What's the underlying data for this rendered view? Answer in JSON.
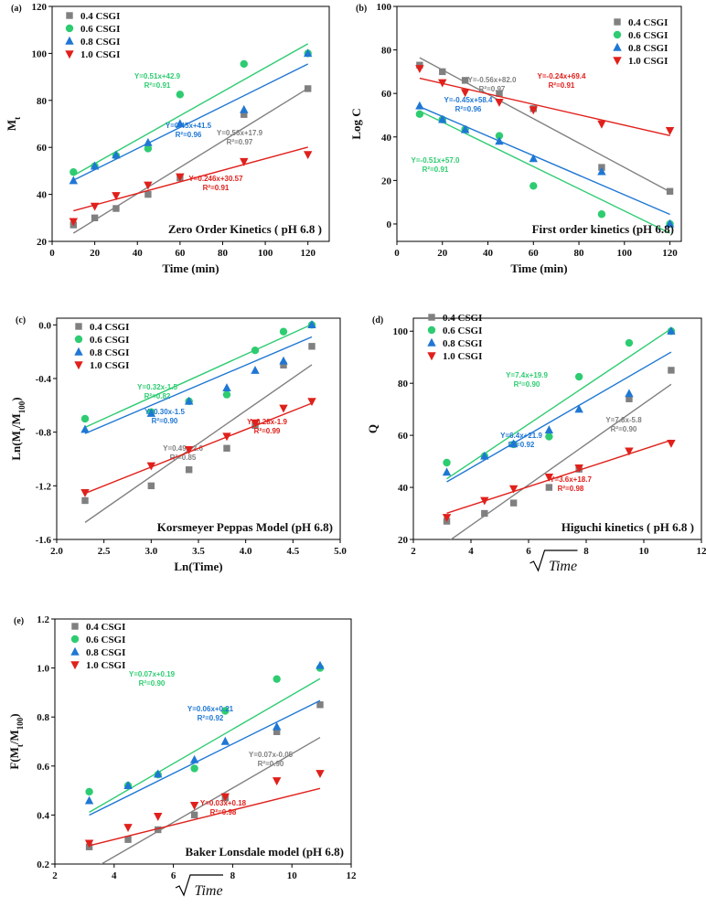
{
  "colors": {
    "0.4 CSGI": "#808080",
    "0.6 CSGI": "#2ecc71",
    "0.8 CSGI": "#1f77d4",
    "1.0 CSGI": "#e0201b",
    "axis": "#000000"
  },
  "chart_data": [
    {
      "id": "a",
      "panel_label": "(a)",
      "type": "scatter",
      "title": "Zero Order Kinetics ( pH 6.8 )",
      "xlabel": "Time (min)",
      "ylabel": "M",
      "ylabel_sub": "t",
      "xlim": [
        0,
        130
      ],
      "ylim": [
        20,
        120
      ],
      "xticks": [
        0,
        20,
        40,
        60,
        80,
        100,
        120
      ],
      "yticks": [
        20,
        40,
        60,
        80,
        100,
        120
      ],
      "x": [
        10,
        20,
        30,
        45,
        60,
        90,
        120
      ],
      "series": [
        {
          "name": "0.4 CSGI",
          "marker": "square",
          "values": [
            27,
            30,
            34,
            40,
            47,
            74,
            85
          ],
          "fit": {
            "slope": 0.56,
            "intercept": 17.9
          },
          "eq": "Y=0.56x+17.9",
          "r2": "R²=0.97"
        },
        {
          "name": "0.6 CSGI",
          "marker": "circle",
          "values": [
            49.5,
            52,
            56.5,
            59.5,
            82.5,
            95.5,
            100
          ],
          "fit": {
            "slope": 0.51,
            "intercept": 42.9
          },
          "eq": "Y=0.51x+42.9",
          "r2": "R²=0.91"
        },
        {
          "name": "0.8 CSGI",
          "marker": "triangle-up",
          "values": [
            45.8,
            52,
            56.7,
            62,
            70,
            76,
            100
          ],
          "fit": {
            "slope": 0.45,
            "intercept": 41.5
          },
          "eq": "Y=0.45x+41.5",
          "r2": "R²=0.96"
        },
        {
          "name": "1.0 CSGI",
          "marker": "triangle-down",
          "values": [
            28.5,
            35,
            39.5,
            44,
            47.5,
            54,
            57
          ],
          "fit": {
            "slope": 0.246,
            "intercept": 30.57
          },
          "eq": "Y=0.246x+30.57",
          "r2": "R²=0.91"
        }
      ]
    },
    {
      "id": "b",
      "panel_label": "(b)",
      "type": "scatter",
      "title": "First order kinetics (pH 6.8)",
      "xlabel": "Time (min)",
      "ylabel": "Log C",
      "ylabel_sub": "",
      "xlim": [
        0,
        125
      ],
      "ylim": [
        -8,
        100
      ],
      "xticks": [
        0,
        20,
        40,
        60,
        80,
        100,
        120
      ],
      "yticks": [
        0,
        20,
        40,
        60,
        80,
        100
      ],
      "x": [
        10,
        20,
        30,
        45,
        60,
        90,
        120
      ],
      "series": [
        {
          "name": "0.4 CSGI",
          "marker": "square",
          "values": [
            73,
            70,
            66,
            60,
            53,
            26,
            15
          ],
          "fit": {
            "slope": -0.56,
            "intercept": 82.0
          },
          "eq": "Y=-0.56x+82.0",
          "r2": "R²=0.97"
        },
        {
          "name": "0.6 CSGI",
          "marker": "circle",
          "values": [
            50.5,
            48,
            43.5,
            40.5,
            17.5,
            4.5,
            0
          ],
          "fit": {
            "slope": -0.51,
            "intercept": 57.0
          },
          "eq": "Y=-0.51x+57.0",
          "r2": "R²=0.91"
        },
        {
          "name": "0.8 CSGI",
          "marker": "triangle-up",
          "values": [
            54.2,
            48,
            43.3,
            38,
            30,
            24,
            0
          ],
          "fit": {
            "slope": -0.45,
            "intercept": 58.4
          },
          "eq": "Y=-0.45x+58.4",
          "r2": "R²=0.96"
        },
        {
          "name": "1.0 CSGI",
          "marker": "triangle-down",
          "values": [
            71.5,
            65,
            60.5,
            56,
            52.5,
            46,
            43
          ],
          "fit": {
            "slope": -0.24,
            "intercept": 69.4
          },
          "eq": "Y=-0.24x+69.4",
          "r2": "R²=0.91"
        }
      ]
    },
    {
      "id": "c",
      "panel_label": "(c)",
      "type": "scatter",
      "title": "Korsmeyer Peppas Model (pH 6.8)",
      "xlabel": "Ln(Time)",
      "ylabel": "Ln(M",
      "ylabel_sub": "t",
      "ylabel_mid": "/M",
      "ylabel_sub2": "100",
      "ylabel_end": ")",
      "xlim": [
        2.0,
        5.0
      ],
      "ylim": [
        -1.6,
        0.05
      ],
      "xticks": [
        2.0,
        2.5,
        3.0,
        3.5,
        4.0,
        4.5,
        5.0
      ],
      "yticks": [
        -1.6,
        -1.2,
        -0.8,
        -0.4,
        0.0
      ],
      "x": [
        2.3,
        3.0,
        3.4,
        3.8,
        4.1,
        4.4,
        4.7
      ],
      "series": [
        {
          "name": "0.4 CSGI",
          "marker": "square",
          "values": [
            -1.31,
            -1.2,
            -1.08,
            -0.92,
            -0.75,
            -0.3,
            -0.16
          ],
          "fit": {
            "slope": 0.49,
            "intercept": -2.6
          },
          "eq": "Y=0.49x-2.6",
          "r2": "R²=0.85"
        },
        {
          "name": "0.6 CSGI",
          "marker": "circle",
          "values": [
            -0.7,
            -0.65,
            -0.57,
            -0.52,
            -0.19,
            -0.05,
            0.0
          ],
          "fit": {
            "slope": 0.32,
            "intercept": -1.5
          },
          "eq": "Y=0.32x-1.5",
          "r2": "R²=0.82"
        },
        {
          "name": "0.8 CSGI",
          "marker": "triangle-up",
          "values": [
            -0.78,
            -0.66,
            -0.57,
            -0.47,
            -0.34,
            -0.27,
            0.0
          ],
          "fit": {
            "slope": 0.3,
            "intercept": -1.5
          },
          "eq": "Y=0.30x-1.5",
          "r2": "R²=0.90"
        },
        {
          "name": "1.0 CSGI",
          "marker": "triangle-down",
          "values": [
            -1.25,
            -1.05,
            -0.93,
            -0.83,
            -0.73,
            -0.62,
            -0.57
          ],
          "fit": {
            "slope": 0.28,
            "intercept": -1.9
          },
          "eq": "Y=0.28x-1.9",
          "r2": "R²=0.99"
        }
      ]
    },
    {
      "id": "d",
      "panel_label": "(d)",
      "type": "scatter",
      "title": "Higuchi kinetics ( pH 6.8 )",
      "xlabel": "√Time",
      "ylabel": "Q",
      "ylabel_sub": "",
      "xlim": [
        2,
        12
      ],
      "ylim": [
        20,
        105
      ],
      "xticks": [
        2,
        4,
        6,
        8,
        10,
        12
      ],
      "yticks": [
        20,
        40,
        60,
        80,
        100
      ],
      "x": [
        3.16,
        4.47,
        5.48,
        6.71,
        7.75,
        9.49,
        10.95
      ],
      "series": [
        {
          "name": "0.4 CSGI",
          "marker": "square",
          "values": [
            27,
            30,
            34,
            40,
            47,
            74,
            85
          ],
          "fit": {
            "slope": 7.8,
            "intercept": -5.8
          },
          "eq": "Y=7.8x-5.8",
          "r2": "R²=0.90"
        },
        {
          "name": "0.6 CSGI",
          "marker": "circle",
          "values": [
            49.5,
            52,
            56.5,
            59.5,
            82.5,
            95.5,
            100
          ],
          "fit": {
            "slope": 7.4,
            "intercept": 19.9
          },
          "eq": "Y=7.4x+19.9",
          "r2": "R²=0.90"
        },
        {
          "name": "0.8 CSGI",
          "marker": "triangle-up",
          "values": [
            45.8,
            52,
            56.7,
            62,
            70,
            76,
            100
          ],
          "fit": {
            "slope": 6.4,
            "intercept": 21.9
          },
          "eq": "Y=6.4x+21.9",
          "r2": "R²=0.92"
        },
        {
          "name": "1.0 CSGI",
          "marker": "triangle-down",
          "values": [
            28.5,
            35,
            39.5,
            44,
            47.5,
            54,
            57
          ],
          "fit": {
            "slope": 3.6,
            "intercept": 18.7
          },
          "eq": "Y=3.6x+18.7",
          "r2": "R²=0.98"
        }
      ]
    },
    {
      "id": "e",
      "panel_label": "(e)",
      "type": "scatter",
      "title": "Baker Lonsdale model (pH 6.8)",
      "xlabel": "√Time",
      "ylabel": "F(M",
      "ylabel_sub": "t",
      "ylabel_mid": "/M",
      "ylabel_sub2": "100",
      "ylabel_end": ")",
      "xlim": [
        2,
        12
      ],
      "ylim": [
        0.2,
        1.2
      ],
      "xticks": [
        2,
        4,
        6,
        8,
        10,
        12
      ],
      "yticks": [
        0.2,
        0.4,
        0.6,
        0.8,
        1.0,
        1.2
      ],
      "x": [
        3.16,
        4.47,
        5.48,
        6.71,
        7.75,
        9.49,
        10.95
      ],
      "series": [
        {
          "name": "0.4 CSGI",
          "marker": "square",
          "values": [
            0.27,
            0.3,
            0.34,
            0.4,
            0.47,
            0.74,
            0.85
          ],
          "fit": {
            "slope": 0.07,
            "intercept": -0.05
          },
          "eq": "Y=0.07x-0.05",
          "r2": "R²=0.90"
        },
        {
          "name": "0.6 CSGI",
          "marker": "circle",
          "values": [
            0.495,
            0.52,
            0.565,
            0.59,
            0.825,
            0.955,
            1.0
          ],
          "fit": {
            "slope": 0.07,
            "intercept": 0.19
          },
          "eq": "Y=0.07x+0.19",
          "r2": "R²=0.90"
        },
        {
          "name": "0.8 CSGI",
          "marker": "triangle-up",
          "values": [
            0.458,
            0.52,
            0.567,
            0.625,
            0.7,
            0.76,
            1.01
          ],
          "fit": {
            "slope": 0.06,
            "intercept": 0.21
          },
          "eq": "Y=0.06x+0.21",
          "r2": "R²=0.92"
        },
        {
          "name": "1.0 CSGI",
          "marker": "triangle-down",
          "values": [
            0.285,
            0.35,
            0.395,
            0.44,
            0.475,
            0.54,
            0.57
          ],
          "fit": {
            "slope": 0.03,
            "intercept": 0.18
          },
          "eq": "Y=0.03x+0.18",
          "r2": "R²=0.98"
        }
      ]
    }
  ]
}
